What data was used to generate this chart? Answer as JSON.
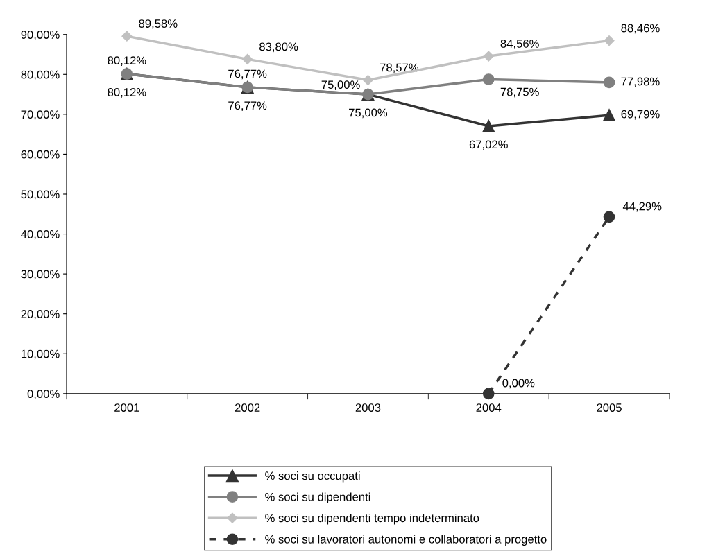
{
  "chart_data": {
    "type": "line",
    "categories": [
      "2001",
      "2002",
      "2003",
      "2004",
      "2005"
    ],
    "ylim": [
      0,
      90
    ],
    "yticks": [
      {
        "value": 0,
        "label": "0,00%"
      },
      {
        "value": 10,
        "label": "10,00%"
      },
      {
        "value": 20,
        "label": "20,00%"
      },
      {
        "value": 30,
        "label": "30,00%"
      },
      {
        "value": 40,
        "label": "40,00%"
      },
      {
        "value": 50,
        "label": "50,00%"
      },
      {
        "value": 60,
        "label": "60,00%"
      },
      {
        "value": 70,
        "label": "70,00%"
      },
      {
        "value": 80,
        "label": "80,00%"
      },
      {
        "value": 90,
        "label": "90,00%"
      }
    ],
    "grid": false,
    "legend": "bottom",
    "series": [
      {
        "name": "% soci su occupati",
        "color": "#333333",
        "marker": "triangle",
        "line_style": "solid",
        "values": [
          80.12,
          76.77,
          75.0,
          67.02,
          69.79
        ],
        "value_labels": [
          "80,12%",
          "76,77%",
          "75,00%",
          "67,02%",
          "69,79%"
        ]
      },
      {
        "name": "% soci su dipendenti",
        "color": "#808080",
        "marker": "circle",
        "line_style": "solid",
        "values": [
          80.12,
          76.77,
          75.0,
          78.75,
          77.98
        ],
        "value_labels": [
          "80,12%",
          "76,77%",
          "75,00%",
          "78,75%",
          "77,98%"
        ]
      },
      {
        "name": "% soci su dipendenti tempo indeterminato",
        "color": "#c0c0c0",
        "marker": "diamond",
        "line_style": "solid",
        "values": [
          89.58,
          83.8,
          78.57,
          84.56,
          88.46
        ],
        "value_labels": [
          "89,58%",
          "83,80%",
          "78,57%",
          "84,56%",
          "88,46%"
        ]
      },
      {
        "name": "% soci su lavoratori autonomi e collaboratori a progetto",
        "color": "#333333",
        "marker": "circle",
        "line_style": "dashed",
        "values": [
          null,
          null,
          null,
          0.0,
          44.29
        ],
        "value_labels": [
          null,
          null,
          null,
          "0,00%",
          "44,29%"
        ]
      }
    ]
  }
}
